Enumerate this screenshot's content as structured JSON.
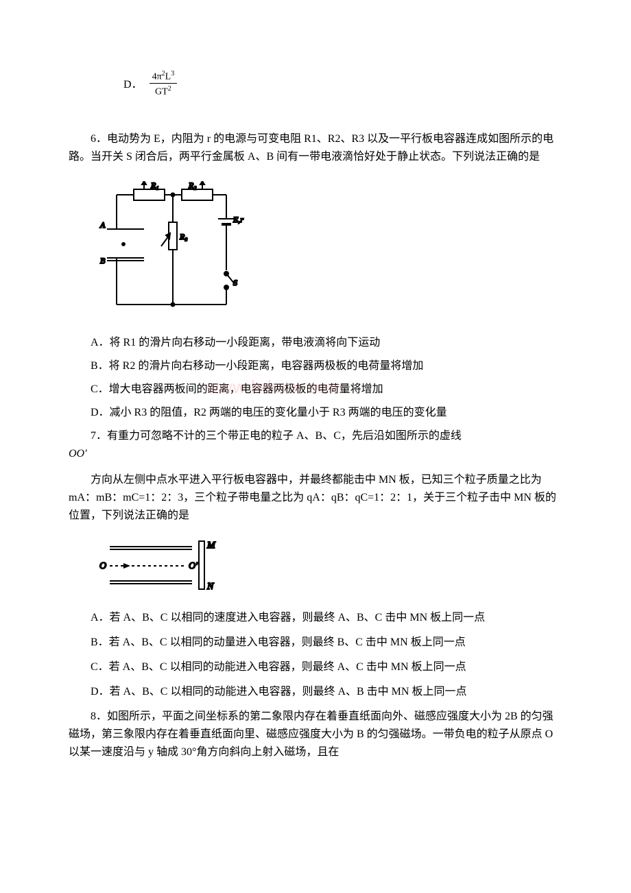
{
  "q5_optionD": {
    "label": "D．",
    "numerator_html": "4π<span class=\"sup\">2</span>L<span class=\"sup\">3</span>",
    "denominator_html": "GT<span class=\"sup\">2</span>"
  },
  "q6": {
    "stem": "6．电动势为 E，内阻为 r 的电源与可变电阻 R1、R2、R3 以及一平行板电容器连成如图所示的电路。当开关 S 闭合后，两平行金属板 A、B 间有一带电液滴恰好处于静止状态。下列说法正确的是",
    "circuit": {
      "labels": {
        "R1": "R₁",
        "R2": "R₂",
        "R3": "R₃",
        "A": "A",
        "B": "B",
        "Er": "E,r",
        "S": "S"
      },
      "colors": {
        "stroke": "#000000",
        "bg": "#ffffff"
      },
      "stroke_width": 2
    },
    "options": {
      "A": "A．将 R1 的滑片向右移动一小段距离，带电液滴将向下运动",
      "B": "B．将 R2 的滑片向右移动一小段距离，电容器两极板的电荷量将增加",
      "C": "C．增大电容器两板间的距离，电容器两极板的电荷量将增加",
      "D": "D．减小 R3 的阻值，R2 两端的电压的变化量小于 R3 两端的电压的变化量"
    }
  },
  "q7": {
    "stem1": "7．有重力可忽略不计的三个带正电的粒子 A、B、C，先后沿如图所示的虚线",
    "oo": "OO'",
    "stem2": "方向从左侧中点水平进入平行板电容器中，并最终都能击中 MN 板，已知三个粒子质量之比为 mA：mB：mC=1：2：3，三个粒子带电量之比为 qA：qB：qC=1：2：1，关于三个粒子击中 MN 板的位置，下列说法正确的是",
    "diagram": {
      "labels": {
        "O": "O",
        "Oprime": "O'",
        "M": "M",
        "N": "N"
      },
      "colors": {
        "stroke": "#000000"
      },
      "stroke_width": 2
    },
    "options": {
      "A": "A．若 A、B、C 以相同的速度进入电容器，则最终 A、B、C 击中 MN 板上同一点",
      "B": "B．若 A、B、C 以相同的动量进入电容器，则最终 B、C 击中 MN 板上同一点",
      "C": "C．若 A、B、C 以相同的动能进入电容器，则最终 A、C 击中 MN 板上同一点",
      "D": "D．若 A、B、C 以相同的动能进入电容器，则最终 A、B 击中 MN 板上同一点"
    }
  },
  "q8": {
    "stem": "8．如图所示，平面之间坐标系的第二象限内存在着垂直纸面向外、磁感应强度大小为 2B 的匀强磁场，第三象限内存在着垂直纸面向里、磁感应强度大小为 B 的匀强磁场。一带负电的粒子从原点 O 以某一速度沿与 y 轴成 30°角方向斜向上射入磁场，且在"
  },
  "watermark_text": "www.bdocx.com",
  "colors": {
    "text": "#000000",
    "background": "#ffffff",
    "watermark": "rgba(255,120,120,0.25)"
  }
}
